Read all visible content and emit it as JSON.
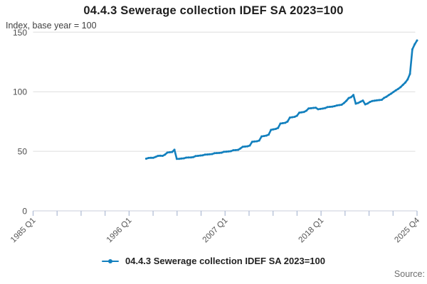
{
  "page": {
    "title": "04.4.3 Sewerage collection IDEF SA 2023=100",
    "subtitle": "Index, base year = 100",
    "source_label": "Source:"
  },
  "legend": {
    "items": [
      {
        "label": "04.4.3 Sewerage collection IDEF SA 2023=100",
        "color": "#1380BE"
      }
    ]
  },
  "colors": {
    "line": "#1380BE",
    "grid": "#dddddd",
    "axis": "#c9cedb",
    "tick": "#adbad3",
    "axis_text": "#4d4d4d",
    "x_text": "#555555"
  },
  "chart_data": {
    "type": "line",
    "title": "04.4.3 Sewerage collection IDEF SA 2023=100",
    "subtitle": "Index, base year = 100",
    "xlabel": "",
    "ylabel": "Index, base year = 100",
    "grid": "horizontal",
    "legend_position": "bottom",
    "y_axis": {
      "min": 0,
      "max": 150,
      "ticks": [
        0,
        50,
        100,
        150
      ]
    },
    "x_axis": {
      "start": "1985 Q1",
      "end": "2025 Q4",
      "frequency": "quarterly",
      "major_tick_labels": [
        "1985 Q1",
        "1996 Q1",
        "2007 Q1",
        "2018 Q1",
        "2025 Q4"
      ],
      "total_ticks": 17,
      "label_every_n_ticks": 4,
      "tick_label_rotation": -45
    },
    "series": [
      {
        "name": "04.4.3 Sewerage collection IDEF SA 2023=100",
        "color": "#1380BE",
        "start": "1997 Q1",
        "end": "2025 Q4",
        "frequency": "quarterly",
        "values": [
          43.8,
          44.4,
          44.6,
          44.5,
          45.3,
          46.1,
          46.3,
          46.2,
          47.2,
          48.9,
          49.2,
          49.4,
          51.3,
          43.6,
          43.7,
          43.9,
          44.1,
          44.7,
          44.8,
          44.9,
          45.1,
          46.0,
          46.2,
          46.4,
          46.6,
          47.2,
          47.3,
          47.5,
          47.7,
          48.4,
          48.5,
          48.6,
          48.8,
          49.6,
          49.7,
          49.9,
          50.1,
          50.9,
          51.0,
          51.2,
          52.4,
          53.8,
          54.0,
          54.2,
          54.8,
          58.0,
          58.2,
          58.4,
          59.0,
          62.5,
          62.8,
          63.2,
          64.0,
          68.0,
          68.4,
          68.8,
          69.6,
          73.3,
          73.6,
          73.9,
          75.0,
          78.3,
          78.6,
          78.9,
          79.8,
          82.4,
          82.7,
          83.0,
          84.0,
          86.0,
          86.2,
          86.4,
          86.6,
          85.3,
          85.6,
          85.9,
          86.3,
          87.1,
          87.3,
          87.5,
          87.9,
          88.5,
          88.8,
          89.1,
          90.5,
          92.4,
          94.7,
          95.4,
          97.3,
          90.0,
          90.6,
          91.6,
          92.6,
          89.4,
          90.1,
          91.4,
          92.2,
          92.5,
          92.8,
          93.0,
          93.2,
          94.8,
          95.8,
          97.2,
          98.4,
          99.8,
          101.2,
          102.4,
          103.8,
          105.7,
          107.7,
          110.3,
          115.0,
          135.6,
          139.8,
          143.0
        ]
      }
    ]
  }
}
